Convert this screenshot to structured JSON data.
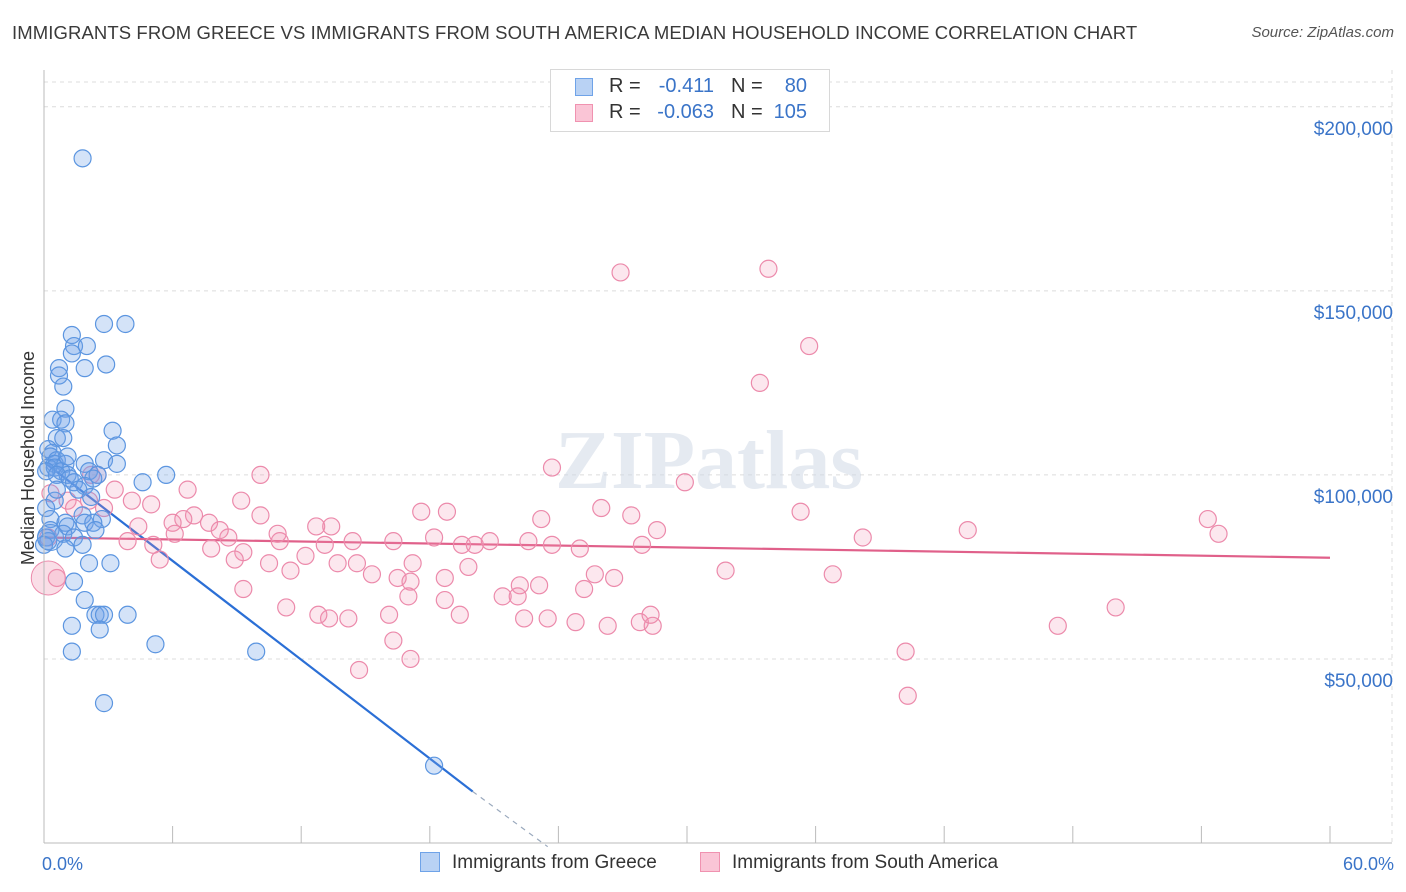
{
  "title": "IMMIGRANTS FROM GREECE VS IMMIGRANTS FROM SOUTH AMERICA MEDIAN HOUSEHOLD INCOME CORRELATION CHART",
  "source": "Source: ZipAtlas.com",
  "watermark": "ZIPatlas",
  "legend": {
    "rows": [
      {
        "r_label": "R =",
        "r_value": "-0.411",
        "n_label": "N =",
        "n_value": "80",
        "color": "#6fa3e8"
      },
      {
        "r_label": "R =",
        "r_value": "-0.063",
        "n_label": "N =",
        "n_value": "105",
        "color": "#f092b0"
      }
    ]
  },
  "bottom_legend": [
    {
      "label": "Immigrants from Greece",
      "color": "#6fa3e8"
    },
    {
      "label": "Immigrants from South America",
      "color": "#f092b0"
    }
  ],
  "chart_data": {
    "type": "scatter",
    "title": "IMMIGRANTS FROM GREECE VS IMMIGRANTS FROM SOUTH AMERICA MEDIAN HOUSEHOLD INCOME CORRELATION CHART",
    "xlabel": "",
    "ylabel": "Median Household Income",
    "xlim": [
      0,
      60
    ],
    "ylim": [
      0,
      210000
    ],
    "x_tick_labels": [
      "0.0%",
      "60.0%"
    ],
    "y_ticks": [
      50000,
      100000,
      150000,
      200000
    ],
    "y_tick_labels": [
      "$50,000",
      "$100,000",
      "$150,000",
      "$200,000"
    ],
    "grid": true,
    "series": [
      {
        "name": "Immigrants from Greece",
        "color": "#6fa3e8",
        "line_color": "#2b6fd6",
        "trend": {
          "x0": 0,
          "y0": 103500,
          "x1": 20,
          "y1": 14000,
          "dash_to_x": 23.5,
          "dash_to_y": -1000
        },
        "points": [
          [
            1.8,
            186000
          ],
          [
            2.8,
            141000
          ],
          [
            3.8,
            141000
          ],
          [
            1.3,
            138000
          ],
          [
            1.4,
            135000
          ],
          [
            2.0,
            135000
          ],
          [
            1.3,
            133000
          ],
          [
            2.9,
            130000
          ],
          [
            1.9,
            129000
          ],
          [
            0.7,
            129000
          ],
          [
            0.7,
            127000
          ],
          [
            0.9,
            124000
          ],
          [
            1.0,
            118000
          ],
          [
            0.4,
            115000
          ],
          [
            0.8,
            115000
          ],
          [
            1.0,
            114000
          ],
          [
            3.2,
            112000
          ],
          [
            0.6,
            110000
          ],
          [
            0.9,
            110000
          ],
          [
            3.4,
            108000
          ],
          [
            0.2,
            107000
          ],
          [
            0.4,
            106000
          ],
          [
            0.3,
            105000
          ],
          [
            0.6,
            104000
          ],
          [
            2.8,
            104000
          ],
          [
            0.5,
            103000
          ],
          [
            1.0,
            103000
          ],
          [
            1.9,
            103000
          ],
          [
            3.4,
            103000
          ],
          [
            0.2,
            102000
          ],
          [
            0.5,
            102000
          ],
          [
            0.8,
            101000
          ],
          [
            2.1,
            101000
          ],
          [
            0.1,
            101000
          ],
          [
            1.1,
            100000
          ],
          [
            0.6,
            100000
          ],
          [
            2.5,
            100000
          ],
          [
            5.7,
            100000
          ],
          [
            1.2,
            99000
          ],
          [
            2.3,
            99000
          ],
          [
            1.4,
            98000
          ],
          [
            4.6,
            98000
          ],
          [
            1.9,
            97000
          ],
          [
            1.6,
            96000
          ],
          [
            0.5,
            93000
          ],
          [
            0.1,
            91000
          ],
          [
            1.8,
            89000
          ],
          [
            0.3,
            88000
          ],
          [
            2.7,
            88000
          ],
          [
            1.0,
            87000
          ],
          [
            1.9,
            87000
          ],
          [
            2.3,
            87000
          ],
          [
            1.1,
            86000
          ],
          [
            0.3,
            85000
          ],
          [
            2.4,
            85000
          ],
          [
            0.9,
            84000
          ],
          [
            1.4,
            83000
          ],
          [
            0.1,
            83000
          ],
          [
            0.2,
            82000
          ],
          [
            1.8,
            81000
          ],
          [
            0.0,
            81000
          ],
          [
            1.0,
            80000
          ],
          [
            3.1,
            76000
          ],
          [
            2.1,
            76000
          ],
          [
            1.4,
            71000
          ],
          [
            1.9,
            66000
          ],
          [
            3.9,
            62000
          ],
          [
            2.4,
            62000
          ],
          [
            2.6,
            62000
          ],
          [
            2.8,
            62000
          ],
          [
            1.3,
            59000
          ],
          [
            2.6,
            58000
          ],
          [
            5.2,
            54000
          ],
          [
            1.3,
            52000
          ],
          [
            9.9,
            52000
          ],
          [
            2.8,
            38000
          ],
          [
            18.2,
            21000
          ],
          [
            1.1,
            105000
          ],
          [
            2.2,
            94000
          ],
          [
            0.6,
            96000
          ]
        ]
      },
      {
        "name": "Immigrants from South America",
        "color": "#f092b0",
        "line_color": "#e0608a",
        "trend": {
          "x0": 0,
          "y0": 83000,
          "x1": 60,
          "y1": 77500
        },
        "points": [
          [
            33.8,
            156000
          ],
          [
            26.9,
            155000
          ],
          [
            35.7,
            135000
          ],
          [
            33.4,
            125000
          ],
          [
            23.7,
            102000
          ],
          [
            29.9,
            98000
          ],
          [
            10.1,
            100000
          ],
          [
            6.7,
            96000
          ],
          [
            2.2,
            100000
          ],
          [
            3.3,
            96000
          ],
          [
            1.1,
            93000
          ],
          [
            2.1,
            93000
          ],
          [
            4.1,
            93000
          ],
          [
            5.0,
            92000
          ],
          [
            1.4,
            91000
          ],
          [
            2.8,
            91000
          ],
          [
            9.2,
            93000
          ],
          [
            17.6,
            90000
          ],
          [
            18.8,
            90000
          ],
          [
            27.4,
            89000
          ],
          [
            7.0,
            89000
          ],
          [
            10.1,
            89000
          ],
          [
            6.5,
            88000
          ],
          [
            6.0,
            87000
          ],
          [
            7.7,
            87000
          ],
          [
            12.7,
            86000
          ],
          [
            13.4,
            86000
          ],
          [
            23.2,
            88000
          ],
          [
            28.6,
            85000
          ],
          [
            26.0,
            91000
          ],
          [
            35.3,
            90000
          ],
          [
            18.2,
            83000
          ],
          [
            8.6,
            83000
          ],
          [
            11.0,
            82000
          ],
          [
            14.4,
            82000
          ],
          [
            16.3,
            82000
          ],
          [
            19.5,
            81000
          ],
          [
            20.1,
            81000
          ],
          [
            20.8,
            82000
          ],
          [
            22.6,
            82000
          ],
          [
            23.7,
            81000
          ],
          [
            25.0,
            80000
          ],
          [
            27.9,
            81000
          ],
          [
            38.2,
            83000
          ],
          [
            43.1,
            85000
          ],
          [
            54.3,
            88000
          ],
          [
            54.8,
            84000
          ],
          [
            5.1,
            81000
          ],
          [
            7.8,
            80000
          ],
          [
            9.3,
            79000
          ],
          [
            12.2,
            78000
          ],
          [
            5.4,
            77000
          ],
          [
            8.9,
            77000
          ],
          [
            10.5,
            76000
          ],
          [
            11.5,
            74000
          ],
          [
            13.7,
            76000
          ],
          [
            14.6,
            76000
          ],
          [
            17.2,
            76000
          ],
          [
            19.8,
            75000
          ],
          [
            25.7,
            73000
          ],
          [
            26.6,
            72000
          ],
          [
            15.3,
            73000
          ],
          [
            16.5,
            72000
          ],
          [
            18.7,
            72000
          ],
          [
            31.8,
            74000
          ],
          [
            36.8,
            73000
          ],
          [
            17.1,
            71000
          ],
          [
            22.2,
            70000
          ],
          [
            23.1,
            70000
          ],
          [
            21.4,
            67000
          ],
          [
            25.2,
            69000
          ],
          [
            9.3,
            69000
          ],
          [
            17.0,
            67000
          ],
          [
            11.3,
            64000
          ],
          [
            13.3,
            61000
          ],
          [
            16.1,
            62000
          ],
          [
            12.8,
            62000
          ],
          [
            14.2,
            61000
          ],
          [
            22.4,
            61000
          ],
          [
            23.5,
            61000
          ],
          [
            19.4,
            62000
          ],
          [
            24.8,
            60000
          ],
          [
            27.8,
            60000
          ],
          [
            28.4,
            59000
          ],
          [
            26.3,
            59000
          ],
          [
            47.3,
            59000
          ],
          [
            16.3,
            55000
          ],
          [
            17.1,
            50000
          ],
          [
            14.7,
            47000
          ],
          [
            40.2,
            52000
          ],
          [
            40.3,
            40000
          ],
          [
            0.6,
            72000
          ],
          [
            0.2,
            83000
          ],
          [
            3.9,
            82000
          ],
          [
            0.3,
            95000
          ],
          [
            2.5,
            100000
          ],
          [
            28.3,
            62000
          ],
          [
            18.7,
            66000
          ],
          [
            22.1,
            67000
          ],
          [
            4.4,
            86000
          ],
          [
            6.1,
            84000
          ],
          [
            8.2,
            85000
          ],
          [
            10.9,
            84000
          ],
          [
            13.1,
            81000
          ],
          [
            50.0,
            64000
          ]
        ]
      }
    ]
  }
}
